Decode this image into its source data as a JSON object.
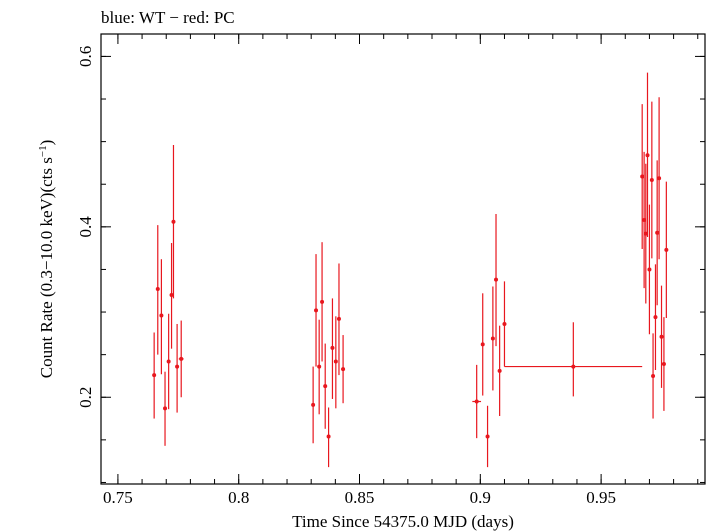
{
  "chart_data": {
    "type": "scatter",
    "title": "blue: WT − red: PC",
    "xlabel": "Time Since 54375.0 MJD (days)",
    "ylabel_main": "Count Rate (0.3−10.0 keV)(cts s",
    "ylabel_sup": "−1",
    "ylabel_close": ")",
    "xlim": [
      0.743,
      0.993
    ],
    "ylim": [
      0.0982,
      0.6263
    ],
    "x_ticks": [
      0.75,
      0.8,
      0.85,
      0.9,
      0.95
    ],
    "x_tick_labels": [
      "0.75",
      "0.8",
      "0.85",
      "0.9",
      "0.95"
    ],
    "x_minor_step": 0.01,
    "y_ticks": [
      0.2,
      0.4,
      0.6
    ],
    "y_tick_labels": [
      "0.2",
      "0.4",
      "0.6"
    ],
    "y_minor_step": 0.05,
    "grid": false,
    "series": [
      {
        "name": "PC",
        "color": "#e8171e",
        "points": [
          {
            "x": 0.765,
            "xerr": 0.0007,
            "y": 0.226,
            "yerr_lo": 0.051,
            "yerr_hi": 0.05
          },
          {
            "x": 0.7665,
            "xerr": 0.0005,
            "y": 0.327,
            "yerr_lo": 0.077,
            "yerr_hi": 0.075
          },
          {
            "x": 0.768,
            "xerr": 0.0007,
            "y": 0.296,
            "yerr_lo": 0.069,
            "yerr_hi": 0.066
          },
          {
            "x": 0.7695,
            "xerr": 0.0005,
            "y": 0.187,
            "yerr_lo": 0.044,
            "yerr_hi": 0.043
          },
          {
            "x": 0.771,
            "xerr": 0.0007,
            "y": 0.242,
            "yerr_lo": 0.056,
            "yerr_hi": 0.056
          },
          {
            "x": 0.7722,
            "xerr": 0.0005,
            "y": 0.32,
            "yerr_lo": 0.063,
            "yerr_hi": 0.061
          },
          {
            "x": 0.773,
            "xerr": 0.0005,
            "y": 0.406,
            "yerr_lo": 0.09,
            "yerr_hi": 0.09
          },
          {
            "x": 0.7745,
            "xerr": 0.0007,
            "y": 0.236,
            "yerr_lo": 0.054,
            "yerr_hi": 0.05
          },
          {
            "x": 0.7762,
            "xerr": 0.001,
            "y": 0.245,
            "yerr_lo": 0.045,
            "yerr_hi": 0.045
          },
          {
            "x": 0.8308,
            "xerr": 0.0005,
            "y": 0.191,
            "yerr_lo": 0.045,
            "yerr_hi": 0.045
          },
          {
            "x": 0.832,
            "xerr": 0.0005,
            "y": 0.302,
            "yerr_lo": 0.066,
            "yerr_hi": 0.066
          },
          {
            "x": 0.8333,
            "xerr": 0.0005,
            "y": 0.236,
            "yerr_lo": 0.056,
            "yerr_hi": 0.055
          },
          {
            "x": 0.8345,
            "xerr": 0.0005,
            "y": 0.312,
            "yerr_lo": 0.07,
            "yerr_hi": 0.07
          },
          {
            "x": 0.8358,
            "xerr": 0.0005,
            "y": 0.213,
            "yerr_lo": 0.05,
            "yerr_hi": 0.05
          },
          {
            "x": 0.8372,
            "xerr": 0.0005,
            "y": 0.154,
            "yerr_lo": 0.036,
            "yerr_hi": 0.034
          },
          {
            "x": 0.8388,
            "xerr": 0.0007,
            "y": 0.258,
            "yerr_lo": 0.06,
            "yerr_hi": 0.058
          },
          {
            "x": 0.8402,
            "xerr": 0.0005,
            "y": 0.242,
            "yerr_lo": 0.055,
            "yerr_hi": 0.053
          },
          {
            "x": 0.8415,
            "xerr": 0.0005,
            "y": 0.292,
            "yerr_lo": 0.066,
            "yerr_hi": 0.065
          },
          {
            "x": 0.8432,
            "xerr": 0.0008,
            "y": 0.233,
            "yerr_lo": 0.04,
            "yerr_hi": 0.04
          },
          {
            "x": 0.8985,
            "xerr": 0.0018,
            "y": 0.195,
            "yerr_lo": 0.043,
            "yerr_hi": 0.043
          },
          {
            "x": 0.901,
            "xerr": 0.0005,
            "y": 0.262,
            "yerr_lo": 0.06,
            "yerr_hi": 0.06
          },
          {
            "x": 0.903,
            "xerr": 0.0007,
            "y": 0.154,
            "yerr_lo": 0.036,
            "yerr_hi": 0.036
          },
          {
            "x": 0.9052,
            "xerr": 0.0005,
            "y": 0.269,
            "yerr_lo": 0.061,
            "yerr_hi": 0.061
          },
          {
            "x": 0.9065,
            "xerr": 0.0005,
            "y": 0.338,
            "yerr_lo": 0.078,
            "yerr_hi": 0.077
          },
          {
            "x": 0.908,
            "xerr": 0.0007,
            "y": 0.231,
            "yerr_lo": 0.053,
            "yerr_hi": 0.053
          },
          {
            "x": 0.91,
            "xerr": 0.0007,
            "y": 0.286,
            "yerr_lo": 0.05,
            "yerr_hi": 0.05
          },
          {
            "x": 0.9385,
            "xerr": 0.0285,
            "y": 0.236,
            "yerr_lo": 0.035,
            "yerr_hi": 0.052
          },
          {
            "x": 0.967,
            "xerr": 0.0005,
            "y": 0.459,
            "yerr_lo": 0.085,
            "yerr_hi": 0.085
          },
          {
            "x": 0.9678,
            "xerr": 0.0005,
            "y": 0.408,
            "yerr_lo": 0.08,
            "yerr_hi": 0.08
          },
          {
            "x": 0.9685,
            "xerr": 0.0005,
            "y": 0.392,
            "yerr_lo": 0.082,
            "yerr_hi": 0.082
          },
          {
            "x": 0.9692,
            "xerr": 0.0005,
            "y": 0.484,
            "yerr_lo": 0.096,
            "yerr_hi": 0.097
          },
          {
            "x": 0.97,
            "xerr": 0.0005,
            "y": 0.35,
            "yerr_lo": 0.076,
            "yerr_hi": 0.076
          },
          {
            "x": 0.971,
            "xerr": 0.0005,
            "y": 0.455,
            "yerr_lo": 0.092,
            "yerr_hi": 0.092
          },
          {
            "x": 0.9715,
            "xerr": 0.0005,
            "y": 0.225,
            "yerr_lo": 0.05,
            "yerr_hi": 0.05
          },
          {
            "x": 0.9725,
            "xerr": 0.0005,
            "y": 0.294,
            "yerr_lo": 0.062,
            "yerr_hi": 0.062
          },
          {
            "x": 0.9732,
            "xerr": 0.0005,
            "y": 0.393,
            "yerr_lo": 0.085,
            "yerr_hi": 0.085
          },
          {
            "x": 0.974,
            "xerr": 0.0005,
            "y": 0.457,
            "yerr_lo": 0.095,
            "yerr_hi": 0.095
          },
          {
            "x": 0.975,
            "xerr": 0.0005,
            "y": 0.271,
            "yerr_lo": 0.06,
            "yerr_hi": 0.06
          },
          {
            "x": 0.976,
            "xerr": 0.0005,
            "y": 0.239,
            "yerr_lo": 0.055,
            "yerr_hi": 0.055
          },
          {
            "x": 0.977,
            "xerr": 0.0005,
            "y": 0.373,
            "yerr_lo": 0.08,
            "yerr_hi": 0.08
          }
        ]
      }
    ]
  }
}
